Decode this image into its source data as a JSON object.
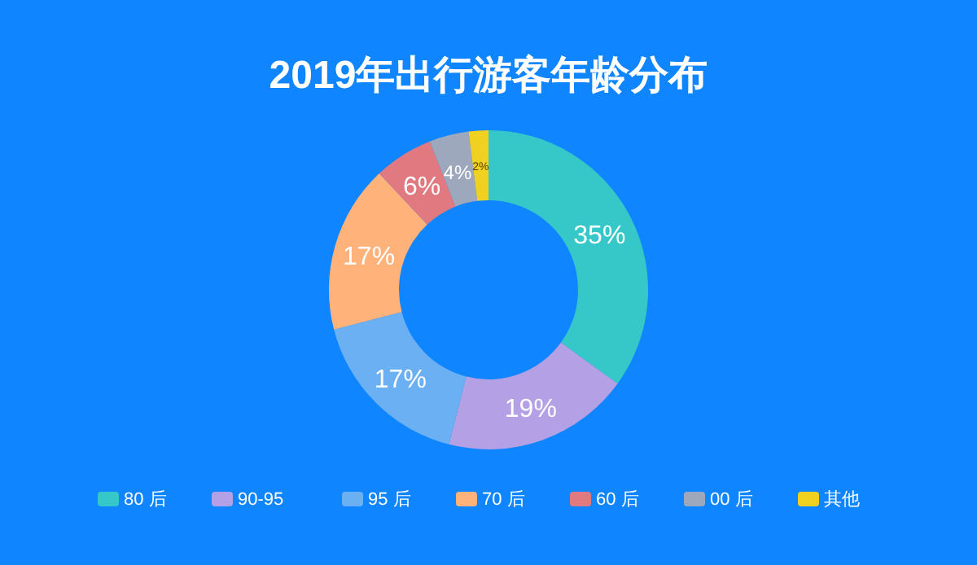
{
  "chart_data": {
    "type": "donut",
    "title": "2019年出行游客年龄分布",
    "categories": [
      "80 后",
      "90-95",
      "95 后",
      "70 后",
      "60 后",
      "00 后",
      "其他"
    ],
    "values": [
      35,
      19,
      17,
      17,
      6,
      4,
      2
    ],
    "colors": [
      "#36c8c8",
      "#b4a0e4",
      "#6bb0f2",
      "#ffb27a",
      "#e07a80",
      "#9ea8bc",
      "#f0d020"
    ],
    "value_labels": [
      "35%",
      "19%",
      "17%",
      "17%",
      "6%",
      "4%",
      "2%"
    ],
    "legend": "bottom"
  }
}
